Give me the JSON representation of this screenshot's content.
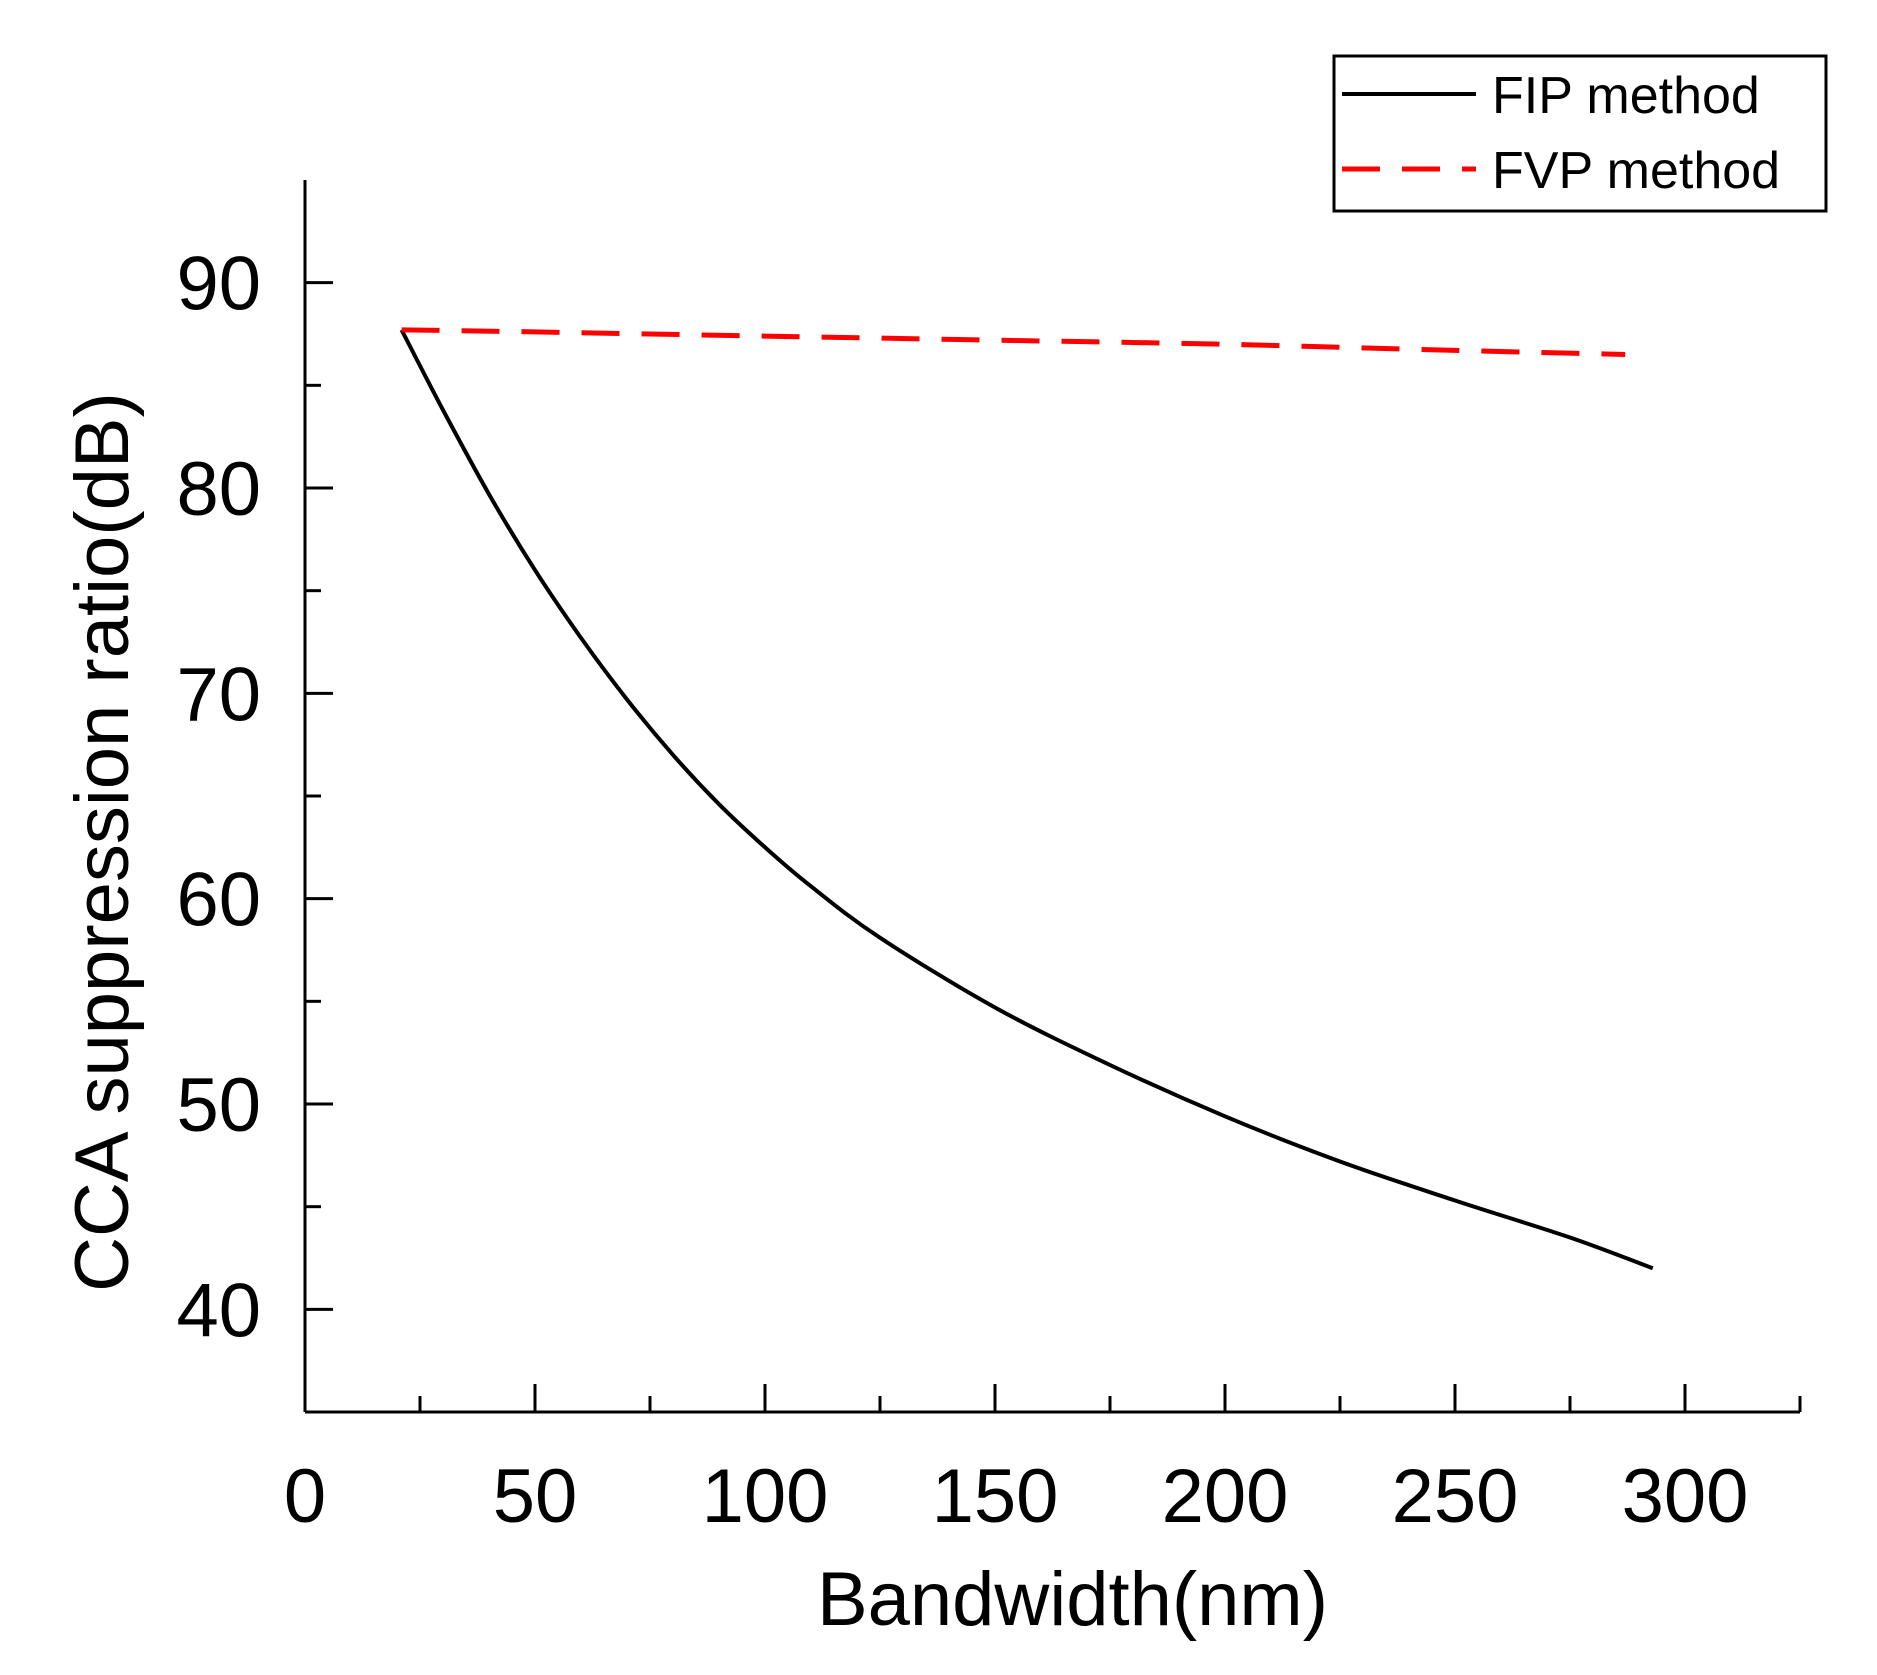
{
  "chart_data": {
    "type": "line",
    "title": "",
    "xlabel": "Bandwidth(nm)",
    "ylabel": "CCA suppression ratio(dB)",
    "xlim": [
      0,
      325
    ],
    "ylim": [
      35,
      95
    ],
    "xticks": [
      0,
      50,
      100,
      150,
      200,
      250,
      300
    ],
    "xminor_ticks": [
      25,
      75,
      125,
      175,
      225,
      275,
      325
    ],
    "yticks": [
      40,
      50,
      60,
      70,
      80,
      90
    ],
    "yminor_ticks": [
      45,
      55,
      65,
      75,
      85
    ],
    "grid": false,
    "legend_position": "top-right",
    "series": [
      {
        "name": "FIP method",
        "color": "#000000",
        "style": "solid",
        "x": [
          21,
          30,
          40,
          50,
          60,
          70,
          80,
          90,
          100,
          110,
          125,
          150,
          175,
          200,
          225,
          250,
          275,
          293
        ],
        "y": [
          87.7,
          83.8,
          79.7,
          76.0,
          72.7,
          69.7,
          67.0,
          64.6,
          62.5,
          60.6,
          58.1,
          54.7,
          51.9,
          49.4,
          47.2,
          45.3,
          43.5,
          42.0
        ]
      },
      {
        "name": "FVP method",
        "color": "#ff0000",
        "style": "dashed",
        "x": [
          21,
          50,
          100,
          150,
          200,
          250,
          287
        ],
        "y": [
          87.7,
          87.6,
          87.4,
          87.2,
          87.0,
          86.7,
          86.5
        ]
      }
    ]
  }
}
